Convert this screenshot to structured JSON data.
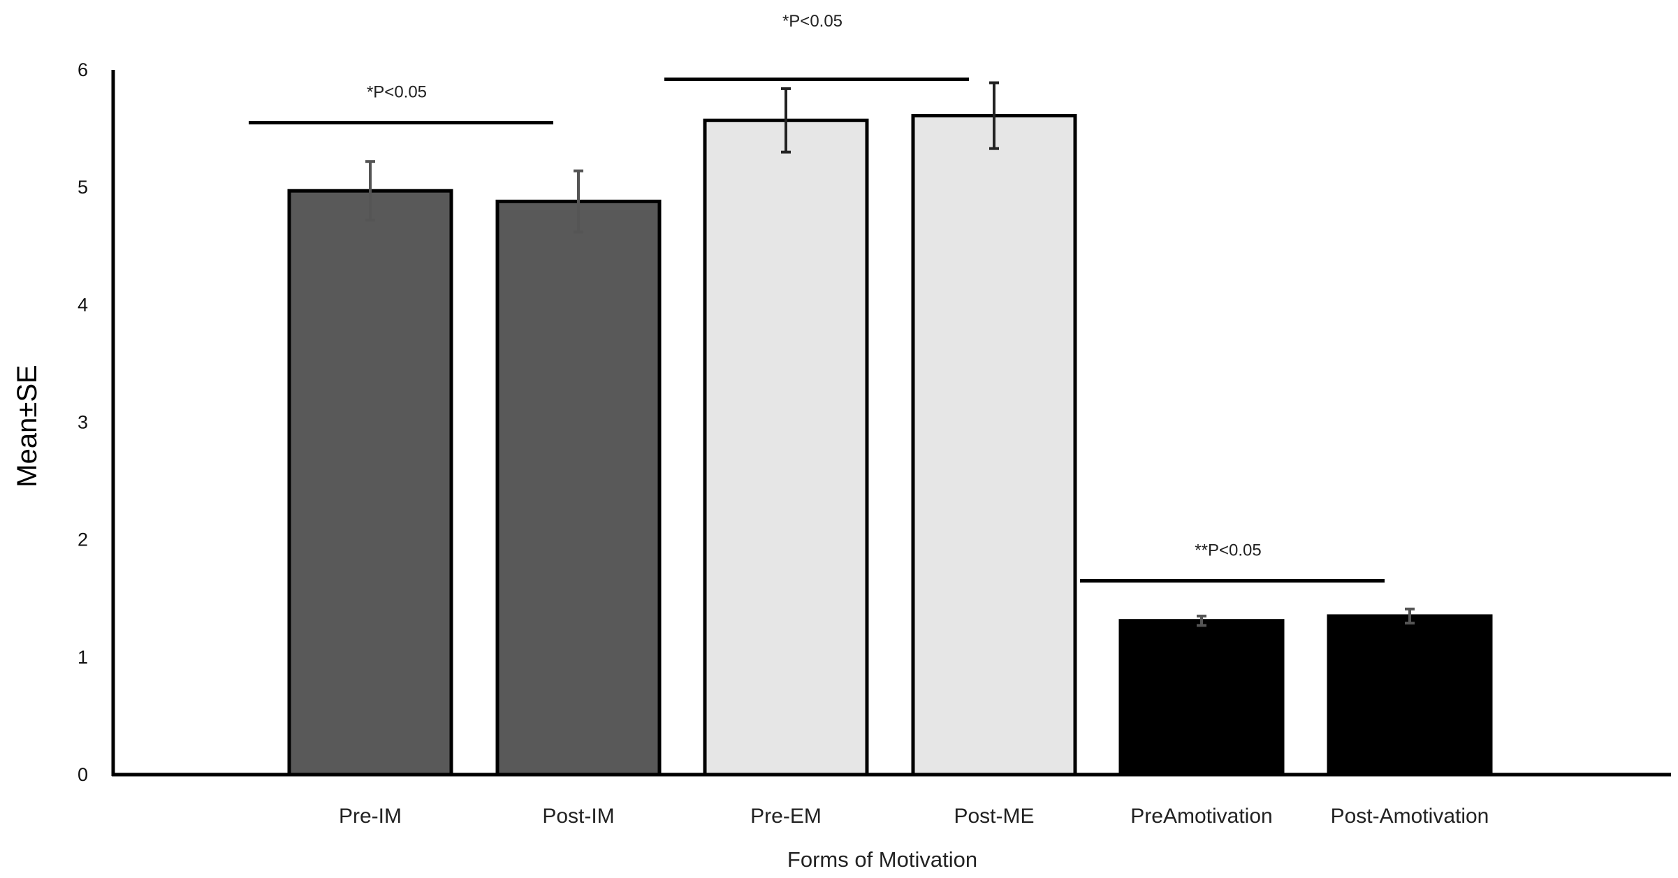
{
  "chart_data": {
    "type": "bar",
    "title": "",
    "xlabel": "Forms of Motivation",
    "ylabel": "Mean±SE",
    "ylim": [
      0,
      6
    ],
    "yticks": [
      0,
      1,
      2,
      3,
      4,
      5,
      6
    ],
    "grid": false,
    "legend": "none",
    "categories": [
      "Pre-IM",
      "Post-IM",
      "Pre-EM",
      "Post-ME",
      "PreAmotivation",
      "Post-Amotivation"
    ],
    "values": [
      4.97,
      4.88,
      5.57,
      5.61,
      1.31,
      1.35
    ],
    "errors": [
      0.25,
      0.26,
      0.27,
      0.28,
      0.04,
      0.06
    ],
    "colors": [
      "#595959",
      "#595959",
      "#e6e6e6",
      "#e6e6e6",
      "#000000",
      "#000000"
    ],
    "annotations": [
      {
        "label": "*P<0.05",
        "from": 0,
        "to": 1,
        "y": 5.55
      },
      {
        "label": "*P<0.05",
        "from": 2,
        "to": 3,
        "y": 5.92
      },
      {
        "label": "**P<0.05",
        "from": 4,
        "to": 5,
        "y": 1.65
      }
    ]
  }
}
